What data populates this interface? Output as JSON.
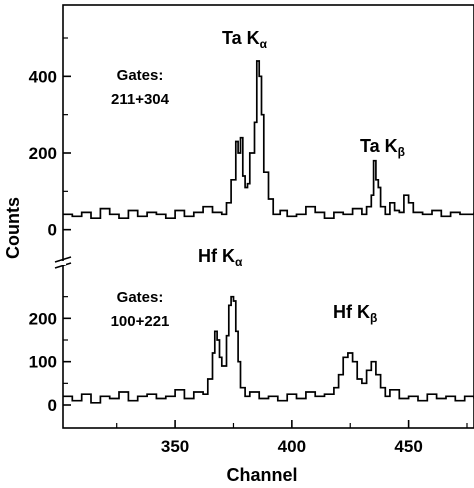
{
  "chart_data": {
    "type": "line",
    "xlabel": "Channel",
    "ylabel": "Counts",
    "x_ticks": [
      350,
      400,
      450
    ],
    "xlim": [
      302,
      478
    ],
    "panels": [
      {
        "id": "top",
        "ylim": [
          -40,
          560
        ],
        "y_ticks": [
          0,
          200,
          400
        ],
        "series": [
          {
            "x": [
              302,
              306,
              310,
              314,
              318,
              322,
              326,
              330,
              334,
              338,
              342,
              346,
              350,
              354,
              358,
              362,
              366,
              370,
              372,
              374,
              376,
              377,
              378,
              379,
              380,
              381,
              382,
              384,
              385,
              386,
              387,
              388,
              390,
              392,
              395,
              398,
              402,
              406,
              410,
              414,
              418,
              422,
              426,
              430,
              432,
              434,
              435,
              436,
              437,
              438,
              440,
              442,
              444,
              446,
              448,
              450,
              452,
              456,
              460,
              464,
              468,
              472,
              478
            ],
            "y": [
              40,
              35,
              45,
              30,
              55,
              40,
              30,
              50,
              35,
              45,
              40,
              30,
              50,
              35,
              45,
              60,
              45,
              40,
              70,
              130,
              230,
              200,
              240,
              140,
              110,
              120,
              200,
              280,
              440,
              400,
              300,
              150,
              80,
              40,
              50,
              35,
              40,
              60,
              45,
              30,
              45,
              40,
              55,
              40,
              60,
              90,
              180,
              130,
              110,
              60,
              40,
              70,
              50,
              45,
              90,
              70,
              45,
              40,
              50,
              35,
              45,
              40,
              45
            ]
          }
        ],
        "annotations": [
          {
            "main": "Ta K",
            "sub": "α"
          },
          {
            "main": "Ta K",
            "sub": "β"
          }
        ],
        "gates_label": "Gates:",
        "gates_value": "211+304"
      },
      {
        "id": "bottom",
        "ylim": [
          -30,
          300
        ],
        "y_ticks": [
          0,
          100,
          200
        ],
        "series": [
          {
            "x": [
              302,
              306,
              310,
              314,
              318,
              322,
              326,
              330,
              334,
              338,
              342,
              346,
              350,
              354,
              358,
              362,
              364,
              366,
              367,
              368,
              369,
              370,
              372,
              373,
              374,
              375,
              376,
              377,
              378,
              380,
              382,
              386,
              390,
              394,
              398,
              402,
              406,
              410,
              414,
              418,
              420,
              422,
              424,
              426,
              428,
              430,
              432,
              434,
              436,
              438,
              440,
              442,
              446,
              450,
              454,
              458,
              462,
              466,
              470,
              474,
              478
            ],
            "y": [
              20,
              10,
              25,
              5,
              20,
              15,
              30,
              10,
              20,
              25,
              15,
              20,
              35,
              15,
              30,
              25,
              60,
              120,
              170,
              150,
              110,
              90,
              160,
              230,
              250,
              240,
              170,
              100,
              40,
              20,
              30,
              15,
              20,
              10,
              25,
              15,
              30,
              20,
              25,
              40,
              70,
              110,
              120,
              100,
              60,
              50,
              80,
              100,
              70,
              40,
              20,
              35,
              15,
              20,
              10,
              25,
              15,
              20,
              10,
              20,
              15
            ]
          }
        ],
        "annotations": [
          {
            "main": "Hf K",
            "sub": "α"
          },
          {
            "main": "Hf K",
            "sub": "β"
          }
        ],
        "gates_label": "Gates:",
        "gates_value": "100+221"
      }
    ]
  }
}
